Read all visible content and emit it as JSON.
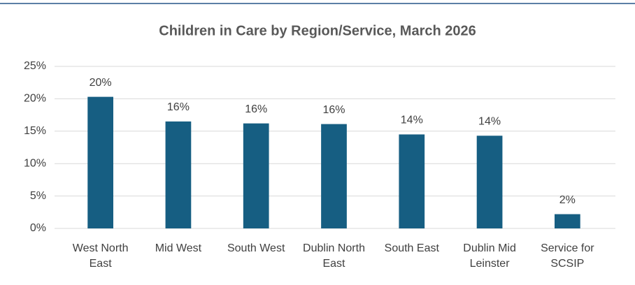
{
  "chart_data": {
    "type": "bar",
    "title": "Children in Care by Region/Service, March 2026",
    "categories": [
      "West North East",
      "Mid West",
      "South West",
      "Dublin North East",
      "South East",
      "Dublin Mid Leinster",
      "Service for SCSIP"
    ],
    "values": [
      20.3,
      16.5,
      16.2,
      16.1,
      14.5,
      14.3,
      2.2
    ],
    "value_labels": [
      "20%",
      "16%",
      "16%",
      "16%",
      "14%",
      "14%",
      "2%"
    ],
    "color": "#165e82",
    "ylim": [
      0,
      25
    ],
    "yticks": [
      {
        "value": 0,
        "label": "0%"
      },
      {
        "value": 5,
        "label": "5%"
      },
      {
        "value": 10,
        "label": "10%"
      },
      {
        "value": 15,
        "label": "15%"
      },
      {
        "value": 20,
        "label": "20%"
      },
      {
        "value": 25,
        "label": "25%"
      }
    ],
    "grid": true
  }
}
